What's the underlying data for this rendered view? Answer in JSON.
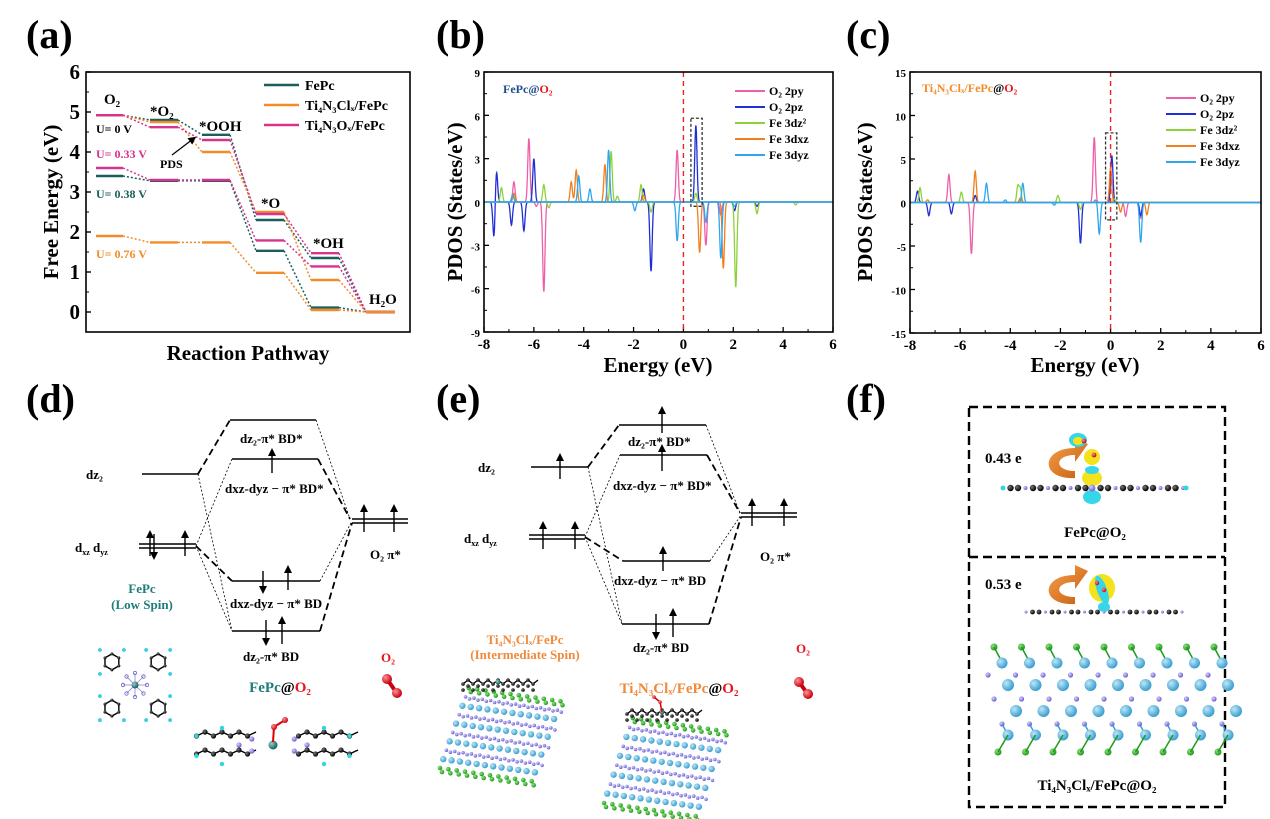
{
  "colors": {
    "fepc": "#1b5e5a",
    "ti4n3clx": "#f28c28",
    "ti4n3ox": "#d6338f",
    "o2_2py": "#ee5fa7",
    "o2_2pz": "#1f2fd6",
    "fe_3dz2": "#8fd13a",
    "fe_3dxz": "#f07f1e",
    "fe_3dyz": "#2ea6ee",
    "fermi": "#e8262a",
    "red": "#e8141c",
    "teal": "#1e7d7a",
    "orange_text": "#ef8a3c"
  },
  "panels": {
    "a": "(a)",
    "b": "(b)",
    "c": "(c)",
    "d": "(d)",
    "e": "(e)",
    "f": "(f)"
  },
  "chart_data": [
    {
      "id": "a",
      "type": "line",
      "subtype": "free-energy-step-diagram",
      "title": "",
      "xlabel": "Reaction Pathway",
      "ylabel": "Free Energy (eV)",
      "ylim": [
        -0.5,
        6
      ],
      "yticks": [
        "0",
        "1",
        "2",
        "3",
        "4",
        "5",
        "6"
      ],
      "legend_position": "top-right",
      "categories": [
        "O2",
        "*O2",
        "*OOH",
        "*O",
        "*OH",
        "H2O"
      ],
      "category_labels": [
        "O₂",
        "*O₂",
        "*OOH",
        "*O",
        "*OH",
        "H₂O"
      ],
      "series": [
        {
          "name": "FePc",
          "legend": "FePc",
          "condition": "U= 0 V",
          "values": [
            4.92,
            4.8,
            4.43,
            2.3,
            1.35,
            0.0
          ]
        },
        {
          "name": "Ti4N3Clx/FePc",
          "legend": "Ti₄N₃Clₓ/FePc",
          "condition": "U= 0 V",
          "values": [
            4.92,
            4.75,
            4.0,
            2.5,
            0.8,
            0.0
          ]
        },
        {
          "name": "Ti4N3Ox/FePc",
          "legend": "Ti₄N₃Oₓ/FePc",
          "condition": "U= 0 V",
          "values": [
            4.92,
            4.62,
            4.3,
            2.45,
            1.47,
            0.0
          ]
        },
        {
          "name": "FePc",
          "condition": "U= 0.38 V",
          "values": [
            3.4,
            3.28,
            3.28,
            1.53,
            0.11,
            0.0
          ]
        },
        {
          "name": "Ti4N3Ox/FePc",
          "condition": "U= 0.33 V",
          "values": [
            3.6,
            3.3,
            3.3,
            1.79,
            1.14,
            0.0
          ]
        },
        {
          "name": "Ti4N3Clx/FePc",
          "condition": "U= 0.76 V",
          "values": [
            1.9,
            1.74,
            1.74,
            0.98,
            0.05,
            0.0
          ]
        }
      ],
      "annotations": {
        "potentials": [
          {
            "text": "U= 0 V",
            "color_key": "black"
          },
          {
            "text": "U= 0.33 V",
            "color_key": "ti4n3ox"
          },
          {
            "text": "U= 0.38 V",
            "color_key": "fepc"
          },
          {
            "text": "U= 0.76 V",
            "color_key": "ti4n3clx"
          }
        ],
        "pds": "PDS"
      }
    },
    {
      "id": "b",
      "type": "line",
      "subtype": "pdos",
      "title": "FePc@O₂",
      "title_parts": [
        "FePc@",
        "O₂"
      ],
      "xlabel": "Energy (eV)",
      "ylabel": "PDOS (States/eV)",
      "xlim": [
        -8,
        6
      ],
      "ylim": [
        -9,
        9
      ],
      "xticks": [
        "-8",
        "-6",
        "-4",
        "-2",
        "0",
        "2",
        "4",
        "6"
      ],
      "yticks": [
        "-9",
        "-6",
        "-3",
        "0",
        "3",
        "6",
        "9"
      ],
      "fermi_level": 0,
      "highlight_box": [
        0.3,
        0.75,
        -0.3,
        5.8
      ],
      "legend_position": "top-right",
      "series": [
        {
          "name": "O₂ 2py",
          "peaks": [
            [
              -6.8,
              1.4
            ],
            [
              -6.2,
              4.4
            ],
            [
              -5.6,
              -6.2
            ],
            [
              -5.9,
              -0.3
            ],
            [
              -0.25,
              7.3
            ],
            [
              -0.25,
              -3.7
            ],
            [
              0.9,
              -3.0
            ],
            [
              1.5,
              -0.9
            ]
          ]
        },
        {
          "name": "O₂ 2pz",
          "peaks": [
            [
              -7.6,
              -2.5
            ],
            [
              -7.5,
              2.2
            ],
            [
              -6.9,
              -1.6
            ],
            [
              -6.4,
              -2.0
            ],
            [
              -6.0,
              3.0
            ],
            [
              -1.3,
              -4.8
            ],
            [
              -1.6,
              0.9
            ],
            [
              0.5,
              5.3
            ],
            [
              2.05,
              -0.6
            ],
            [
              2.95,
              -0.3
            ]
          ]
        },
        {
          "name": "Fe 3dz²",
          "peaks": [
            [
              -7.3,
              1.0
            ],
            [
              -5.6,
              1.2
            ],
            [
              -5.4,
              -0.4
            ],
            [
              -2.9,
              3.5
            ],
            [
              -2.65,
              0.4
            ],
            [
              -1.7,
              1.2
            ],
            [
              -1.3,
              -0.7
            ],
            [
              0.5,
              0.6
            ],
            [
              2.1,
              -5.9
            ],
            [
              2.95,
              -0.8
            ],
            [
              4.5,
              -0.2
            ]
          ]
        },
        {
          "name": "Fe 3dxz",
          "peaks": [
            [
              -6.8,
              0.6
            ],
            [
              -4.5,
              1.4
            ],
            [
              -4.3,
              2.2
            ],
            [
              -3.15,
              2.6
            ],
            [
              -1.6,
              0.5
            ],
            [
              0.65,
              -3.5
            ],
            [
              1.6,
              -4.6
            ]
          ]
        },
        {
          "name": "Fe 3dyz",
          "peaks": [
            [
              -6.85,
              0.5
            ],
            [
              -4.2,
              1.8
            ],
            [
              -3.75,
              0.9
            ],
            [
              -3.0,
              3.6
            ],
            [
              -1.95,
              -0.6
            ],
            [
              -0.25,
              -2.7
            ],
            [
              0.9,
              -1.4
            ],
            [
              1.5,
              -3.9
            ],
            [
              2.05,
              -0.3
            ]
          ]
        }
      ]
    },
    {
      "id": "c",
      "type": "line",
      "subtype": "pdos",
      "title": "Ti₄N₃Clₓ/FePc@O₂",
      "title_parts": [
        "Ti₄N₃Clₓ/FePc",
        "@",
        "O₂"
      ],
      "xlabel": "Energy (eV)",
      "ylabel": "PDOS (States/eV)",
      "xlim": [
        -8,
        6
      ],
      "ylim": [
        -15,
        15
      ],
      "xticks": [
        "-8",
        "-6",
        "-4",
        "-2",
        "0",
        "2",
        "4",
        "6"
      ],
      "yticks": [
        "-15",
        "-10",
        "-5",
        "0",
        "5",
        "10",
        "15"
      ],
      "fermi_level": 0,
      "highlight_box": [
        -0.2,
        0.25,
        -2.0,
        8.0
      ],
      "legend_position": "top-right",
      "series": [
        {
          "name": "O₂ 2py",
          "peaks": [
            [
              -6.45,
              3.2
            ],
            [
              -5.55,
              -5.9
            ],
            [
              -0.65,
              7.5
            ],
            [
              0.6,
              -1.6
            ],
            [
              1.2,
              -1.8
            ]
          ]
        },
        {
          "name": "O₂ 2pz",
          "peaks": [
            [
              -7.7,
              1.3
            ],
            [
              -7.25,
              -1.5
            ],
            [
              -6.35,
              -2.4
            ],
            [
              -6.35,
              1.1
            ],
            [
              -5.4,
              0.8
            ],
            [
              -1.2,
              -4.7
            ],
            [
              0.05,
              5.4
            ],
            [
              1.2,
              -1.5
            ]
          ]
        },
        {
          "name": "Fe 3dz²",
          "peaks": [
            [
              -7.6,
              1.7
            ],
            [
              -5.95,
              1.2
            ],
            [
              -3.7,
              1.9
            ],
            [
              -3.6,
              1.6
            ],
            [
              -2.1,
              0.8
            ],
            [
              -1.2,
              -0.8
            ],
            [
              0.15,
              0.4
            ]
          ]
        },
        {
          "name": "Fe 3dxz",
          "peaks": [
            [
              -7.3,
              0.3
            ],
            [
              -5.4,
              3.6
            ],
            [
              -3.6,
              0.5
            ],
            [
              0.0,
              4.0
            ],
            [
              0.4,
              -1.1
            ],
            [
              1.45,
              -1.4
            ]
          ]
        },
        {
          "name": "Fe 3dyz",
          "peaks": [
            [
              -4.95,
              2.2
            ],
            [
              -4.2,
              0.3
            ],
            [
              -3.5,
              2.2
            ],
            [
              -2.25,
              -0.3
            ],
            [
              -0.45,
              -3.6
            ],
            [
              -0.6,
              0.3
            ],
            [
              1.2,
              -4.6
            ]
          ]
        }
      ]
    }
  ],
  "panel_d": {
    "left_levels": {
      "dz2": "dz₂",
      "dxz": "d",
      "dxz_sub": "xz",
      "dyz": "d",
      "dyz_sub": "yz"
    },
    "mo": {
      "bd_star_dz2": "dz₂-π* BD*",
      "bd_star_dxz": "dxz-dyz − π* BD*",
      "bd_dxz": "dxz-dyz − π* BD",
      "bd_dz2": "dz₂-π* BD"
    },
    "o2_label": "O₂ π*",
    "fepc_name": "FePc",
    "fepc_spin": "(Low Spin)",
    "o2_mol": "O₂",
    "complex_name": [
      "FePc",
      "@",
      "O₂"
    ]
  },
  "panel_e": {
    "left_levels": {
      "dz2": "dz₂"
    },
    "mo": {
      "bd_star_dz2": "dz₂-π* BD*",
      "bd_star_dxz": "dxz-dyz − π* BD*",
      "bd_dxz": "dxz-dyz − π* BD",
      "bd_dz2": "dz₂-π* BD"
    },
    "o2_label": "O₂ π*",
    "support_name": "Ti₄N₃Clₓ/FePc",
    "support_spin": "(Intermediate Spin)",
    "o2_mol": "O₂",
    "complex_name": [
      "Ti₄N₃Clₓ/FePc",
      "@",
      "O₂"
    ]
  },
  "panel_f": {
    "top": {
      "charge": "0.43 e",
      "name": "FePc@O₂"
    },
    "bottom": {
      "charge": "0.53 e",
      "name": "Ti₄N₃Clₓ/FePc@O₂"
    }
  }
}
